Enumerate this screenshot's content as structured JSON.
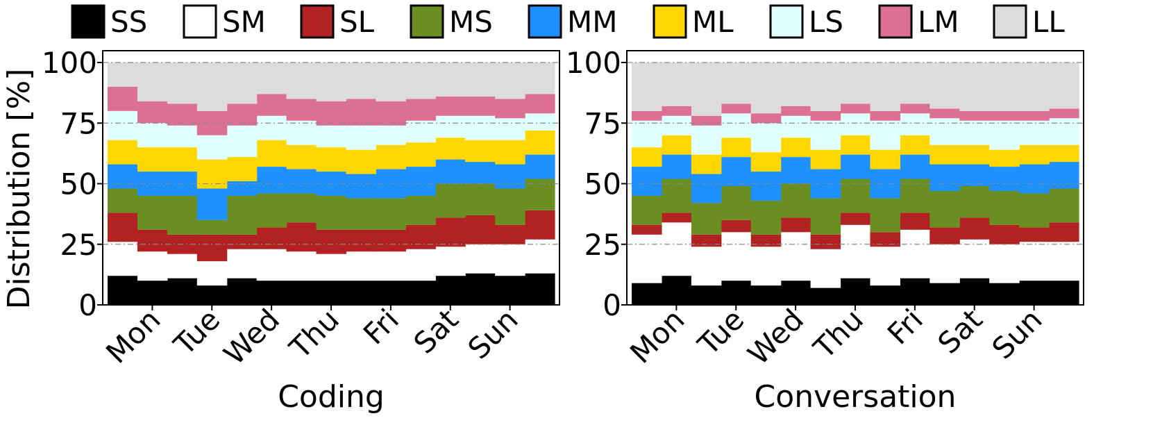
{
  "chart_data": {
    "type": "area",
    "stacked": true,
    "ylabel": "Distribution [%]",
    "ylim": [
      0,
      100
    ],
    "yticks": [
      0,
      25,
      50,
      75,
      100
    ],
    "grid": "horizontal dash-dot at 25/50/75/100",
    "legend": {
      "placement": "top",
      "entries": [
        {
          "name": "SS",
          "color": "#000000"
        },
        {
          "name": "SM",
          "color": "#ffffff"
        },
        {
          "name": "SL",
          "color": "#b22222"
        },
        {
          "name": "MS",
          "color": "#6b8e23"
        },
        {
          "name": "MM",
          "color": "#1e90ff"
        },
        {
          "name": "ML",
          "color": "#ffd700"
        },
        {
          "name": "LS",
          "color": "#e0ffff"
        },
        {
          "name": "LM",
          "color": "#db7093"
        },
        {
          "name": "LL",
          "color": "#dcdcdc"
        }
      ]
    },
    "charts": [
      {
        "xlabel": "Coding",
        "x": [
          "Sun",
          "Mon",
          "Mon",
          "Tue",
          "Tue",
          "Wed",
          "Wed",
          "Thu",
          "Thu",
          "Fri",
          "Fri",
          "Sat",
          "Sat",
          "Sun",
          "Sun"
        ],
        "xticks": [
          "Mon",
          "Tue",
          "Wed",
          "Thu",
          "Fri",
          "Sat",
          "Sun"
        ],
        "tick_points": [
          1,
          3,
          5,
          7,
          9,
          11,
          13
        ],
        "series": [
          {
            "name": "SS",
            "values": [
              12,
              10,
              11,
              8,
              11,
              10,
              10,
              10,
              10,
              10,
              10,
              12,
              13,
              12,
              13
            ]
          },
          {
            "name": "SM",
            "values": [
              14,
              12,
              10,
              10,
              12,
              13,
              12,
              11,
              12,
              12,
              13,
              12,
              12,
              13,
              14
            ]
          },
          {
            "name": "SL",
            "values": [
              12,
              9,
              8,
              11,
              6,
              9,
              12,
              10,
              9,
              9,
              10,
              12,
              12,
              8,
              12
            ]
          },
          {
            "name": "MS",
            "values": [
              10,
              14,
              16,
              6,
              16,
              14,
              12,
              14,
              13,
              13,
              12,
              14,
              13,
              15,
              13
            ]
          },
          {
            "name": "MM",
            "values": [
              10,
              10,
              10,
              13,
              6,
              11,
              10,
              10,
              10,
              12,
              12,
              10,
              9,
              10,
              10
            ]
          },
          {
            "name": "ML",
            "values": [
              10,
              10,
              10,
              12,
              10,
              11,
              10,
              10,
              10,
              10,
              10,
              9,
              9,
              10,
              10
            ]
          },
          {
            "name": "LS",
            "values": [
              12,
              10,
              9,
              10,
              13,
              10,
              10,
              9,
              10,
              8,
              9,
              9,
              10,
              9,
              7
            ]
          },
          {
            "name": "LM",
            "values": [
              10,
              9,
              9,
              10,
              9,
              9,
              9,
              10,
              11,
              10,
              9,
              8,
              8,
              8,
              8
            ]
          },
          {
            "name": "LL",
            "values": [
              10,
              16,
              17,
              20,
              17,
              13,
              15,
              16,
              15,
              16,
              15,
              14,
              14,
              15,
              13
            ]
          }
        ]
      },
      {
        "xlabel": "Conversation",
        "x": [
          "Sun",
          "Mon",
          "Mon",
          "Tue",
          "Tue",
          "Wed",
          "Wed",
          "Thu",
          "Thu",
          "Fri",
          "Fri",
          "Sat",
          "Sat",
          "Sun",
          "Sun"
        ],
        "xticks": [
          "Mon",
          "Tue",
          "Wed",
          "Thu",
          "Fri",
          "Sat",
          "Sun"
        ],
        "tick_points": [
          1,
          3,
          5,
          7,
          9,
          11,
          13
        ],
        "series": [
          {
            "name": "SS",
            "values": [
              9,
              12,
              8,
              10,
              8,
              10,
              7,
              11,
              8,
              11,
              9,
              11,
              9,
              10,
              10
            ]
          },
          {
            "name": "SM",
            "values": [
              20,
              22,
              16,
              20,
              16,
              20,
              16,
              22,
              16,
              20,
              16,
              16,
              16,
              16,
              16
            ]
          },
          {
            "name": "SL",
            "values": [
              4,
              4,
              5,
              5,
              5,
              6,
              6,
              5,
              6,
              7,
              7,
              9,
              8,
              6,
              8
            ]
          },
          {
            "name": "MS",
            "values": [
              12,
              14,
              13,
              14,
              14,
              14,
              15,
              14,
              14,
              14,
              15,
              13,
              14,
              14,
              14
            ]
          },
          {
            "name": "MM",
            "values": [
              12,
              10,
              12,
              12,
              12,
              11,
              12,
              10,
              12,
              10,
              11,
              9,
              10,
              12,
              11
            ]
          },
          {
            "name": "ML",
            "values": [
              8,
              8,
              8,
              8,
              8,
              8,
              8,
              8,
              8,
              8,
              8,
              8,
              7,
              8,
              7
            ]
          },
          {
            "name": "LS",
            "values": [
              11,
              8,
              12,
              10,
              12,
              9,
              12,
              9,
              12,
              9,
              11,
              10,
              12,
              10,
              11
            ]
          },
          {
            "name": "LM",
            "values": [
              4,
              4,
              4,
              4,
              4,
              4,
              4,
              4,
              4,
              4,
              4,
              4,
              4,
              4,
              4
            ]
          },
          {
            "name": "LL",
            "values": [
              20,
              18,
              22,
              17,
              21,
              18,
              20,
              17,
              20,
              17,
              19,
              20,
              20,
              20,
              19
            ]
          }
        ]
      }
    ]
  }
}
